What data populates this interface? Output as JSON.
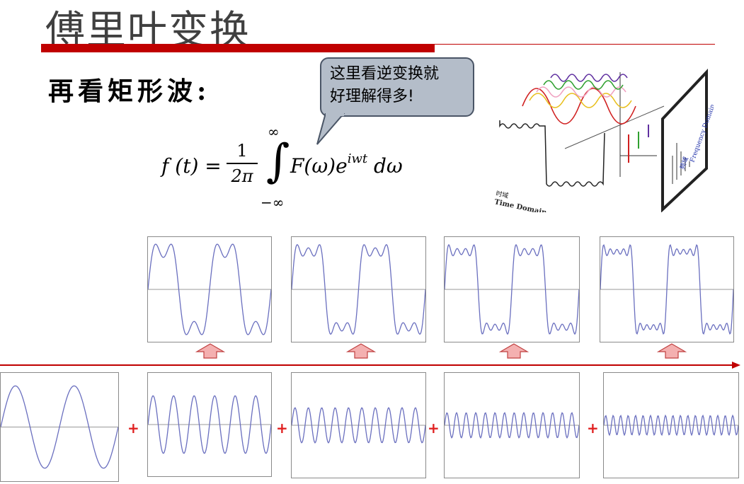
{
  "slide": {
    "title": "傅里叶变换",
    "subtitle": "再看矩形波:",
    "callout": {
      "line1": "这里看逆变换就",
      "line2": "好理解得多!"
    },
    "formula": {
      "lhs": "f (t) =",
      "numerator": "1",
      "denominator": "2π",
      "upper_limit": "∞",
      "lower_limit": "−∞",
      "integrand": "F(ω)e",
      "exponent": "iwt",
      "differential": "dω"
    },
    "figure": {
      "time_domain_cn": "时域",
      "time_domain_en": "Time Domain",
      "freq_domain_cn": "频域",
      "freq_domain_en": "Frequency Domain"
    },
    "plus_sign": "+",
    "colors": {
      "accent_red": "#c00000",
      "wave": "#6a6fbf",
      "arrow_fill": "#f4b0b0",
      "arrow_stroke": "#c04040",
      "bubble_fill": "#b4bdc9"
    },
    "sum_panels_harmonics": [
      1,
      2,
      3,
      4
    ],
    "component_panels_harmonic": [
      1,
      3,
      5,
      7,
      9
    ]
  }
}
